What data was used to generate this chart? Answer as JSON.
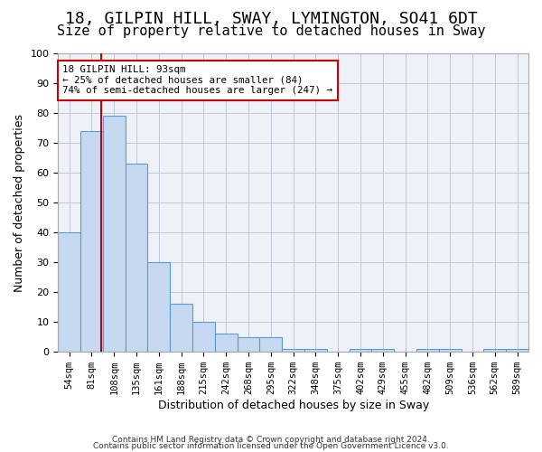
{
  "title1": "18, GILPIN HILL, SWAY, LYMINGTON, SO41 6DT",
  "title2": "Size of property relative to detached houses in Sway",
  "xlabel": "Distribution of detached houses by size in Sway",
  "ylabel": "Number of detached properties",
  "categories": [
    "54sqm",
    "81sqm",
    "108sqm",
    "135sqm",
    "161sqm",
    "188sqm",
    "215sqm",
    "242sqm",
    "268sqm",
    "295sqm",
    "322sqm",
    "348sqm",
    "375sqm",
    "402sqm",
    "429sqm",
    "455sqm",
    "482sqm",
    "509sqm",
    "536sqm",
    "562sqm",
    "589sqm"
  ],
  "values": [
    40,
    74,
    79,
    63,
    30,
    16,
    10,
    6,
    5,
    5,
    1,
    1,
    0,
    1,
    1,
    0,
    1,
    1,
    0,
    1,
    1
  ],
  "bar_color": "#c6d9f0",
  "bar_edge_color": "#5b9bd5",
  "red_line_x": 1.72,
  "annotation_title": "18 GILPIN HILL: 93sqm",
  "annotation_line1": "← 25% of detached houses are smaller (84)",
  "annotation_line2": "74% of semi-detached houses are larger (247) →",
  "annotation_box_color": "#ffffff",
  "annotation_box_edge": "#cc0000",
  "footnote1": "Contains HM Land Registry data © Crown copyright and database right 2024.",
  "footnote2": "Contains public sector information licensed under the Open Government Licence v3.0.",
  "ylim": [
    0,
    100
  ],
  "title1_fontsize": 13,
  "title2_fontsize": 11,
  "background_color": "#ffffff",
  "grid_color": "#c0c8d8"
}
